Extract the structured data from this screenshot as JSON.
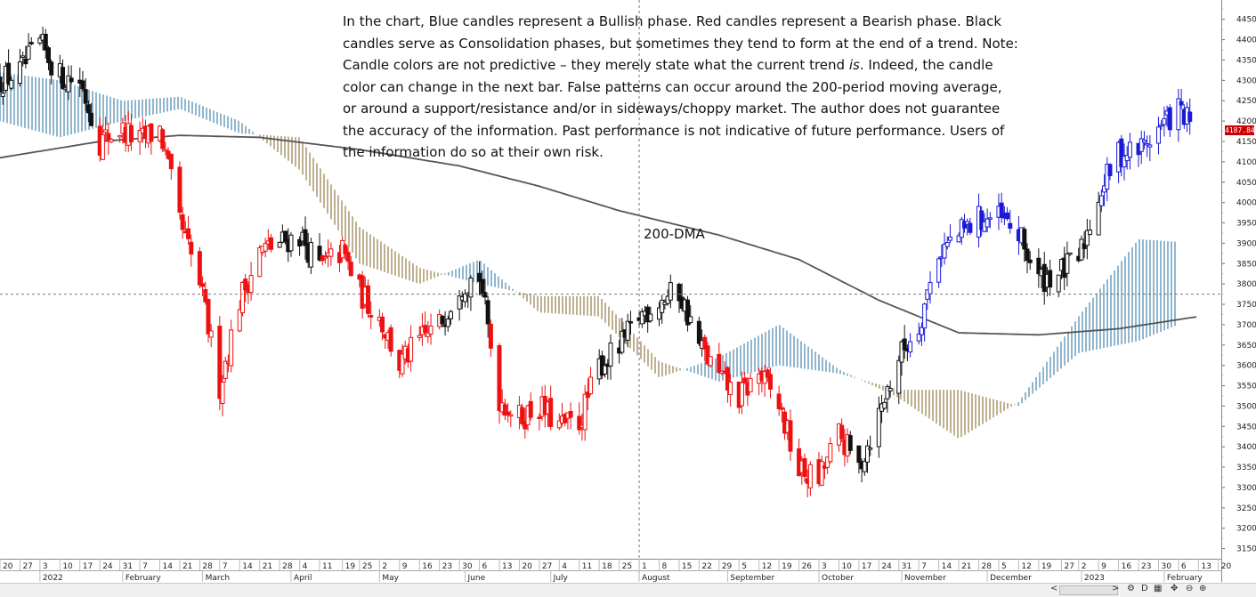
{
  "annotation": {
    "disclaimer_parts": [
      "In the chart, Blue candles represent a Bullish phase. Red candles represent a Bearish phase. Black candles serve as Consolidation phases, but sometimes they tend to form at the end of a trend. Note: Candle colors are not predictive – they merely state what the current trend ",
      "is",
      ". Indeed, the candle color can change in the next bar. False patterns can occur around the 200-period moving average, or around a support/resistance and/or in sideways/choppy market. The author does not guarantee the accuracy of the information. Past performance is not indicative of future performance. Users of the information do so at their own risk."
    ],
    "ma_label": "200-DMA"
  },
  "last_price_label": "4187.84",
  "colors": {
    "bullish": "#1a1ad6",
    "bearish": "#ee1111",
    "consolidation": "#111111",
    "ma": "#555555",
    "cloud_bull": "#5d93b8",
    "cloud_bear": "#a08a5c",
    "grid": "#999999"
  },
  "toolbar": {
    "nav_left": "<",
    "nav_right": ">",
    "icons": [
      "settings-icon",
      "d-icon",
      "chart-icon",
      "crosshair-icon",
      "zoom-out-icon",
      "zoom-in-icon"
    ]
  },
  "chart_data": {
    "type": "candlestick",
    "title": "",
    "y_ticks": [
      3150,
      3200,
      3250,
      3300,
      3350,
      3400,
      3450,
      3500,
      3550,
      3600,
      3650,
      3700,
      3750,
      3800,
      3850,
      3900,
      3950,
      4000,
      4050,
      4100,
      4150,
      4200,
      4250,
      4300,
      4350,
      4400,
      4450
    ],
    "ylim": [
      3125,
      4480
    ],
    "x_range_days": [
      "2021-12-20",
      "2023-02-21"
    ],
    "x_day_ticks": [
      {
        "date": "2021-12-20",
        "label": "20"
      },
      {
        "date": "2021-12-27",
        "label": "27"
      },
      {
        "date": "2022-01-03",
        "label": "3"
      },
      {
        "date": "2022-01-10",
        "label": "10"
      },
      {
        "date": "2022-01-17",
        "label": "17"
      },
      {
        "date": "2022-01-24",
        "label": "24"
      },
      {
        "date": "2022-01-31",
        "label": "31"
      },
      {
        "date": "2022-02-07",
        "label": "7"
      },
      {
        "date": "2022-02-14",
        "label": "14"
      },
      {
        "date": "2022-02-21",
        "label": "21"
      },
      {
        "date": "2022-02-28",
        "label": "28"
      },
      {
        "date": "2022-03-07",
        "label": "7"
      },
      {
        "date": "2022-03-14",
        "label": "14"
      },
      {
        "date": "2022-03-21",
        "label": "21"
      },
      {
        "date": "2022-03-28",
        "label": "28"
      },
      {
        "date": "2022-04-04",
        "label": "4"
      },
      {
        "date": "2022-04-11",
        "label": "11"
      },
      {
        "date": "2022-04-19",
        "label": "19"
      },
      {
        "date": "2022-04-25",
        "label": "25"
      },
      {
        "date": "2022-05-02",
        "label": "2"
      },
      {
        "date": "2022-05-09",
        "label": "9"
      },
      {
        "date": "2022-05-16",
        "label": "16"
      },
      {
        "date": "2022-05-23",
        "label": "23"
      },
      {
        "date": "2022-05-30",
        "label": "30"
      },
      {
        "date": "2022-06-06",
        "label": "6"
      },
      {
        "date": "2022-06-13",
        "label": "13"
      },
      {
        "date": "2022-06-20",
        "label": "20"
      },
      {
        "date": "2022-06-27",
        "label": "27"
      },
      {
        "date": "2022-07-04",
        "label": "4"
      },
      {
        "date": "2022-07-11",
        "label": "11"
      },
      {
        "date": "2022-07-18",
        "label": "18"
      },
      {
        "date": "2022-07-25",
        "label": "25"
      },
      {
        "date": "2022-08-01",
        "label": "1"
      },
      {
        "date": "2022-08-08",
        "label": "8"
      },
      {
        "date": "2022-08-15",
        "label": "15"
      },
      {
        "date": "2022-08-22",
        "label": "22"
      },
      {
        "date": "2022-08-29",
        "label": "29"
      },
      {
        "date": "2022-09-05",
        "label": "5"
      },
      {
        "date": "2022-09-12",
        "label": "12"
      },
      {
        "date": "2022-09-19",
        "label": "19"
      },
      {
        "date": "2022-09-26",
        "label": "26"
      },
      {
        "date": "2022-10-03",
        "label": "3"
      },
      {
        "date": "2022-10-10",
        "label": "10"
      },
      {
        "date": "2022-10-17",
        "label": "17"
      },
      {
        "date": "2022-10-24",
        "label": "24"
      },
      {
        "date": "2022-10-31",
        "label": "31"
      },
      {
        "date": "2022-11-07",
        "label": "7"
      },
      {
        "date": "2022-11-14",
        "label": "14"
      },
      {
        "date": "2022-11-21",
        "label": "21"
      },
      {
        "date": "2022-11-28",
        "label": "28"
      },
      {
        "date": "2022-12-05",
        "label": "5"
      },
      {
        "date": "2022-12-12",
        "label": "12"
      },
      {
        "date": "2022-12-19",
        "label": "19"
      },
      {
        "date": "2022-12-27",
        "label": "27"
      },
      {
        "date": "2023-01-02",
        "label": "2"
      },
      {
        "date": "2023-01-09",
        "label": "9"
      },
      {
        "date": "2023-01-16",
        "label": "16"
      },
      {
        "date": "2023-01-23",
        "label": "23"
      },
      {
        "date": "2023-01-30",
        "label": "30"
      },
      {
        "date": "2023-02-06",
        "label": "6"
      },
      {
        "date": "2023-02-13",
        "label": "13"
      },
      {
        "date": "2023-02-20",
        "label": "20"
      }
    ],
    "x_month_ticks": [
      {
        "date": "2022-01-03",
        "label": "2022"
      },
      {
        "date": "2022-02-01",
        "label": "February"
      },
      {
        "date": "2022-03-01",
        "label": "March"
      },
      {
        "date": "2022-04-01",
        "label": "April"
      },
      {
        "date": "2022-05-02",
        "label": "May"
      },
      {
        "date": "2022-06-01",
        "label": "June"
      },
      {
        "date": "2022-07-01",
        "label": "July"
      },
      {
        "date": "2022-08-01",
        "label": "August"
      },
      {
        "date": "2022-09-01",
        "label": "September"
      },
      {
        "date": "2022-10-03",
        "label": "October"
      },
      {
        "date": "2022-11-01",
        "label": "November"
      },
      {
        "date": "2022-12-01",
        "label": "December"
      },
      {
        "date": "2023-01-03",
        "label": "2023"
      },
      {
        "date": "2023-02-01",
        "label": "February"
      }
    ],
    "crosshair": {
      "date": "2022-08-01",
      "price": 3775
    },
    "price_anchors": [
      {
        "date": "2021-12-20",
        "price": 4300
      },
      {
        "date": "2021-12-27",
        "price": 4320
      },
      {
        "date": "2022-01-03",
        "price": 4390
      },
      {
        "date": "2022-01-10",
        "price": 4310
      },
      {
        "date": "2022-01-17",
        "price": 4300
      },
      {
        "date": "2022-01-24",
        "price": 4150
      },
      {
        "date": "2022-01-31",
        "price": 4180
      },
      {
        "date": "2022-02-07",
        "price": 4150
      },
      {
        "date": "2022-02-14",
        "price": 4180
      },
      {
        "date": "2022-02-21",
        "price": 3950
      },
      {
        "date": "2022-02-28",
        "price": 3800
      },
      {
        "date": "2022-03-07",
        "price": 3550
      },
      {
        "date": "2022-03-14",
        "price": 3760
      },
      {
        "date": "2022-03-21",
        "price": 3880
      },
      {
        "date": "2022-03-28",
        "price": 3900
      },
      {
        "date": "2022-04-04",
        "price": 3920
      },
      {
        "date": "2022-04-11",
        "price": 3840
      },
      {
        "date": "2022-04-19",
        "price": 3880
      },
      {
        "date": "2022-04-25",
        "price": 3780
      },
      {
        "date": "2022-05-02",
        "price": 3720
      },
      {
        "date": "2022-05-09",
        "price": 3600
      },
      {
        "date": "2022-05-16",
        "price": 3660
      },
      {
        "date": "2022-05-23",
        "price": 3700
      },
      {
        "date": "2022-05-30",
        "price": 3800
      },
      {
        "date": "2022-06-06",
        "price": 3820
      },
      {
        "date": "2022-06-13",
        "price": 3520
      },
      {
        "date": "2022-06-20",
        "price": 3470
      },
      {
        "date": "2022-06-27",
        "price": 3500
      },
      {
        "date": "2022-07-04",
        "price": 3450
      },
      {
        "date": "2022-07-11",
        "price": 3460
      },
      {
        "date": "2022-07-18",
        "price": 3600
      },
      {
        "date": "2022-07-25",
        "price": 3640
      },
      {
        "date": "2022-08-01",
        "price": 3720
      },
      {
        "date": "2022-08-08",
        "price": 3760
      },
      {
        "date": "2022-08-15",
        "price": 3780
      },
      {
        "date": "2022-08-22",
        "price": 3650
      },
      {
        "date": "2022-08-29",
        "price": 3570
      },
      {
        "date": "2022-09-05",
        "price": 3520
      },
      {
        "date": "2022-09-12",
        "price": 3580
      },
      {
        "date": "2022-09-19",
        "price": 3500
      },
      {
        "date": "2022-09-26",
        "price": 3340
      },
      {
        "date": "2022-10-03",
        "price": 3320
      },
      {
        "date": "2022-10-10",
        "price": 3430
      },
      {
        "date": "2022-10-17",
        "price": 3350
      },
      {
        "date": "2022-10-24",
        "price": 3480
      },
      {
        "date": "2022-10-31",
        "price": 3620
      },
      {
        "date": "2022-11-07",
        "price": 3700
      },
      {
        "date": "2022-11-14",
        "price": 3880
      },
      {
        "date": "2022-11-21",
        "price": 3920
      },
      {
        "date": "2022-11-28",
        "price": 3960
      },
      {
        "date": "2022-12-05",
        "price": 3960
      },
      {
        "date": "2022-12-12",
        "price": 3920
      },
      {
        "date": "2022-12-19",
        "price": 3810
      },
      {
        "date": "2022-12-27",
        "price": 3830
      },
      {
        "date": "2023-01-02",
        "price": 3860
      },
      {
        "date": "2023-01-09",
        "price": 4020
      },
      {
        "date": "2023-01-16",
        "price": 4120
      },
      {
        "date": "2023-01-23",
        "price": 4130
      },
      {
        "date": "2023-01-30",
        "price": 4180
      },
      {
        "date": "2023-02-06",
        "price": 4230
      },
      {
        "date": "2023-02-10",
        "price": 4190
      }
    ],
    "phase_segments": [
      {
        "from": "2021-12-20",
        "to": "2022-01-24",
        "phase": "consolidation"
      },
      {
        "from": "2022-01-24",
        "to": "2022-03-10",
        "phase": "bearish"
      },
      {
        "from": "2022-03-10",
        "to": "2022-03-28",
        "phase": "bearish"
      },
      {
        "from": "2022-03-28",
        "to": "2022-04-12",
        "phase": "consolidation"
      },
      {
        "from": "2022-04-12",
        "to": "2022-05-24",
        "phase": "bearish"
      },
      {
        "from": "2022-05-24",
        "to": "2022-06-10",
        "phase": "consolidation"
      },
      {
        "from": "2022-06-10",
        "to": "2022-07-18",
        "phase": "bearish"
      },
      {
        "from": "2022-07-18",
        "to": "2022-08-24",
        "phase": "consolidation"
      },
      {
        "from": "2022-08-24",
        "to": "2022-10-14",
        "phase": "bearish"
      },
      {
        "from": "2022-10-14",
        "to": "2022-11-04",
        "phase": "consolidation"
      },
      {
        "from": "2022-11-04",
        "to": "2022-12-14",
        "phase": "bullish"
      },
      {
        "from": "2022-12-14",
        "to": "2023-01-10",
        "phase": "consolidation"
      },
      {
        "from": "2023-01-10",
        "to": "2023-02-11",
        "phase": "bullish"
      }
    ],
    "ma_200": [
      {
        "date": "2021-12-20",
        "value": 4110
      },
      {
        "date": "2022-01-24",
        "value": 4150
      },
      {
        "date": "2022-02-21",
        "value": 4165
      },
      {
        "date": "2022-03-21",
        "value": 4160
      },
      {
        "date": "2022-04-25",
        "value": 4130
      },
      {
        "date": "2022-05-30",
        "value": 4090
      },
      {
        "date": "2022-06-27",
        "value": 4040
      },
      {
        "date": "2022-07-25",
        "value": 3980
      },
      {
        "date": "2022-08-29",
        "value": 3920
      },
      {
        "date": "2022-09-26",
        "value": 3860
      },
      {
        "date": "2022-10-24",
        "value": 3760
      },
      {
        "date": "2022-11-21",
        "value": 3680
      },
      {
        "date": "2022-12-19",
        "value": 3675
      },
      {
        "date": "2023-01-16",
        "value": 3690
      },
      {
        "date": "2023-02-13",
        "value": 3720
      }
    ],
    "cloud": [
      {
        "date": "2021-12-20",
        "a": 4320,
        "b": 4200
      },
      {
        "date": "2022-01-10",
        "a": 4300,
        "b": 4160
      },
      {
        "date": "2022-02-01",
        "a": 4250,
        "b": 4200
      },
      {
        "date": "2022-02-21",
        "a": 4260,
        "b": 4230
      },
      {
        "date": "2022-03-14",
        "a": 4200,
        "b": 4170
      },
      {
        "date": "2022-04-04",
        "a": 4080,
        "b": 4160
      },
      {
        "date": "2022-04-25",
        "a": 3850,
        "b": 3940
      },
      {
        "date": "2022-05-16",
        "a": 3800,
        "b": 3840
      },
      {
        "date": "2022-06-06",
        "a": 3860,
        "b": 3800
      },
      {
        "date": "2022-06-27",
        "a": 3730,
        "b": 3770
      },
      {
        "date": "2022-07-18",
        "a": 3720,
        "b": 3770
      },
      {
        "date": "2022-08-08",
        "a": 3570,
        "b": 3610
      },
      {
        "date": "2022-08-29",
        "a": 3620,
        "b": 3560
      },
      {
        "date": "2022-09-19",
        "a": 3700,
        "b": 3600
      },
      {
        "date": "2022-10-10",
        "a": 3590,
        "b": 3580
      },
      {
        "date": "2022-10-31",
        "a": 3520,
        "b": 3540
      },
      {
        "date": "2022-11-21",
        "a": 3420,
        "b": 3540
      },
      {
        "date": "2022-12-12",
        "a": 3510,
        "b": 3500
      },
      {
        "date": "2023-01-02",
        "a": 3720,
        "b": 3630
      },
      {
        "date": "2023-01-23",
        "a": 3910,
        "b": 3660
      },
      {
        "date": "2023-02-13",
        "a": 3900,
        "b": 3720
      }
    ]
  }
}
